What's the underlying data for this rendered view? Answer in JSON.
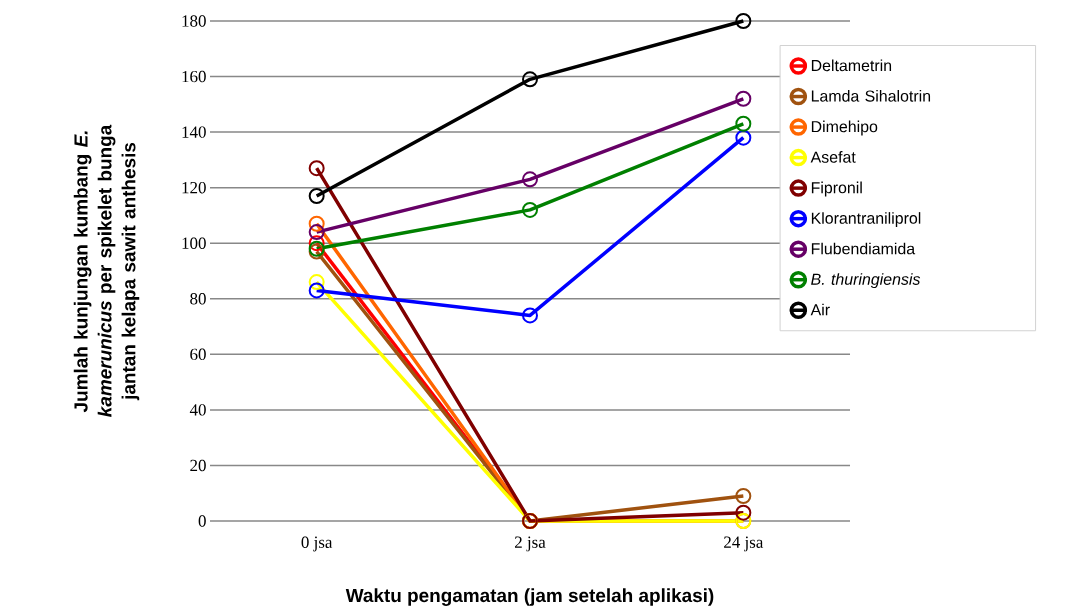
{
  "chart_data": {
    "type": "line",
    "xlabel": "Waktu pengamatan (jam setelah aplikasi)",
    "ylabel": "Jumlah kunjungan kumbang *E. kamerunicus* per spikelet bunga jantan kelapa sawit anthesis",
    "categories": [
      "0 jsa",
      "2 jsa",
      "24 jsa"
    ],
    "ylim": [
      0,
      180
    ],
    "yticks": [
      0,
      20,
      40,
      60,
      80,
      100,
      120,
      140,
      160,
      180
    ],
    "grid": "y",
    "legend": "right",
    "marker": "circle",
    "series": [
      {
        "name": "Deltametrin",
        "color": "#ff0000",
        "values": [
          100,
          0,
          null
        ]
      },
      {
        "name": "Lamda Sihalotrin",
        "color": "#a0520f",
        "values": [
          97,
          0,
          9
        ]
      },
      {
        "name": "Dimehipo",
        "color": "#ff6600",
        "values": [
          107,
          0,
          0
        ]
      },
      {
        "name": "Asefat",
        "color": "#ffff00",
        "values": [
          86,
          0,
          0
        ]
      },
      {
        "name": "Fipronil",
        "color": "#800000",
        "values": [
          127,
          0,
          3
        ]
      },
      {
        "name": "Klorantraniliprol",
        "color": "#0000ff",
        "values": [
          83,
          74,
          138
        ]
      },
      {
        "name": "Flubendiamida",
        "color": "#660066",
        "values": [
          104,
          123,
          152
        ]
      },
      {
        "name": "*B. thuringiensis*",
        "color": "#008000",
        "values": [
          98,
          112,
          143
        ]
      },
      {
        "name": "Air",
        "color": "#000000",
        "values": [
          117,
          159,
          180
        ]
      }
    ]
  }
}
